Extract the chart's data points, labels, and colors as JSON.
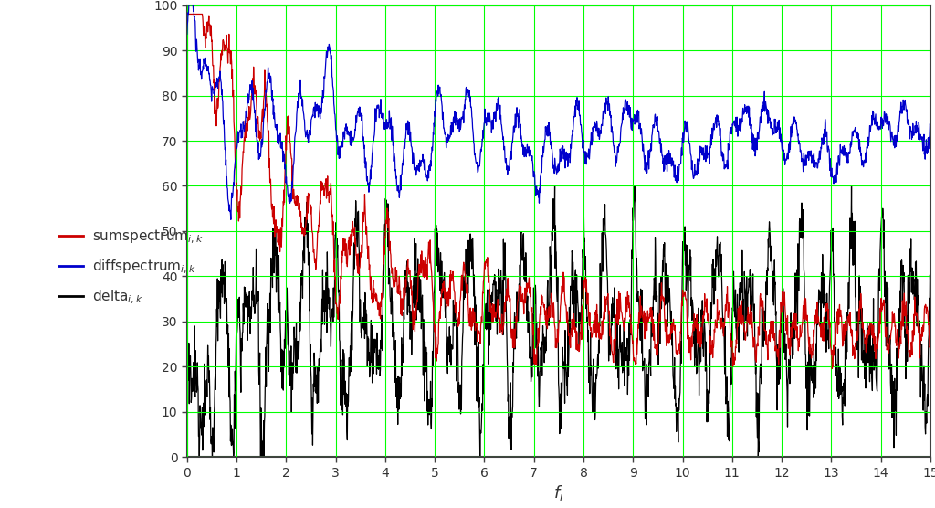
{
  "title": "",
  "xlabel": "f_i",
  "ylabel": "",
  "xlim": [
    0,
    15
  ],
  "ylim": [
    0,
    100
  ],
  "xticks": [
    0,
    1,
    2,
    3,
    4,
    5,
    6,
    7,
    8,
    9,
    10,
    11,
    12,
    13,
    14,
    15
  ],
  "yticks": [
    0,
    10,
    20,
    30,
    40,
    50,
    60,
    70,
    80,
    90,
    100
  ],
  "grid_color": "#00ff00",
  "bg_color": "#ffffff",
  "sum_color": "#cc0000",
  "diff_color": "#0000cc",
  "delta_color": "#000000",
  "legend_labels_fmt": [
    "sumspectrum$_{i,k}$",
    "diffspectrum$_{i,k}$",
    "delta$_{i,k}$"
  ],
  "n_points": 2000,
  "seed": 42
}
